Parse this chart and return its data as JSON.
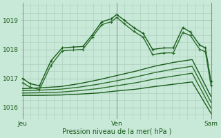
{
  "bg_color": "#c8e8d8",
  "grid_color": "#aaccbb",
  "line_color_dark": "#1a5c1a",
  "xlabel": "Pression niveau de la mer( hPa )",
  "xtick_labels": [
    "Jeu",
    "Ven",
    "Sam"
  ],
  "xtick_positions": [
    0.0,
    1.0,
    2.0
  ],
  "ylim": [
    1015.6,
    1019.6
  ],
  "yticks": [
    1016,
    1017,
    1018,
    1019
  ],
  "lines": [
    {
      "x": [
        0.0,
        0.08,
        0.18,
        0.3,
        0.42,
        0.54,
        0.64,
        0.74,
        0.84,
        0.94,
        1.0,
        1.08,
        1.18,
        1.28,
        1.38,
        1.5,
        1.6,
        1.7,
        1.78,
        1.88,
        1.94,
        2.0
      ],
      "y": [
        1017.0,
        1016.82,
        1016.75,
        1017.6,
        1018.05,
        1018.08,
        1018.1,
        1018.5,
        1018.95,
        1019.05,
        1019.2,
        1019.0,
        1018.75,
        1018.55,
        1018.0,
        1018.05,
        1018.05,
        1018.75,
        1018.6,
        1018.15,
        1018.05,
        1016.9
      ],
      "marker": "+",
      "ms": 3.5,
      "lw": 1.0,
      "color": "#1a5c1a",
      "zorder": 5
    },
    {
      "x": [
        0.0,
        0.08,
        0.18,
        0.3,
        0.42,
        0.54,
        0.64,
        0.74,
        0.84,
        0.94,
        1.0,
        1.08,
        1.18,
        1.28,
        1.38,
        1.5,
        1.6,
        1.7,
        1.78,
        1.88,
        1.94,
        2.0
      ],
      "y": [
        1016.85,
        1016.7,
        1016.62,
        1017.45,
        1017.95,
        1017.98,
        1018.0,
        1018.42,
        1018.85,
        1018.95,
        1019.1,
        1018.88,
        1018.62,
        1018.42,
        1017.82,
        1017.88,
        1017.88,
        1018.58,
        1018.48,
        1018.0,
        1017.92,
        1016.75
      ],
      "marker": "+",
      "ms": 3.5,
      "lw": 1.0,
      "color": "#2a6e2a",
      "zorder": 5
    },
    {
      "x": [
        0.0,
        0.2,
        0.4,
        0.6,
        0.8,
        1.0,
        1.2,
        1.4,
        1.6,
        1.8,
        2.0
      ],
      "y": [
        1016.65,
        1016.68,
        1016.72,
        1016.82,
        1016.95,
        1017.1,
        1017.25,
        1017.42,
        1017.55,
        1017.65,
        1016.38
      ],
      "marker": null,
      "ms": 0,
      "lw": 1.0,
      "color": "#1a5c1a",
      "zorder": 4
    },
    {
      "x": [
        0.0,
        0.2,
        0.4,
        0.6,
        0.8,
        1.0,
        1.2,
        1.4,
        1.6,
        1.8,
        2.0
      ],
      "y": [
        1016.58,
        1016.6,
        1016.63,
        1016.7,
        1016.8,
        1016.92,
        1017.05,
        1017.2,
        1017.32,
        1017.42,
        1016.18
      ],
      "marker": null,
      "ms": 0,
      "lw": 1.0,
      "color": "#2a6e2a",
      "zorder": 4
    },
    {
      "x": [
        0.0,
        0.2,
        0.4,
        0.6,
        0.8,
        1.0,
        1.2,
        1.4,
        1.6,
        1.8,
        2.0
      ],
      "y": [
        1016.5,
        1016.51,
        1016.53,
        1016.58,
        1016.65,
        1016.75,
        1016.85,
        1016.98,
        1017.08,
        1017.18,
        1015.98
      ],
      "marker": null,
      "ms": 0,
      "lw": 1.0,
      "color": "#2a6e2a",
      "zorder": 4
    },
    {
      "x": [
        0.0,
        0.2,
        0.4,
        0.6,
        0.8,
        1.0,
        1.2,
        1.4,
        1.6,
        1.8,
        2.0
      ],
      "y": [
        1016.42,
        1016.42,
        1016.43,
        1016.46,
        1016.5,
        1016.57,
        1016.63,
        1016.72,
        1016.8,
        1016.88,
        1015.8
      ],
      "marker": null,
      "ms": 0,
      "lw": 1.0,
      "color": "#1a5c1a",
      "zorder": 4
    }
  ],
  "vlines": [
    0.0,
    1.0,
    2.0
  ],
  "vline_color": "#888888",
  "vline_lw": 0.7
}
